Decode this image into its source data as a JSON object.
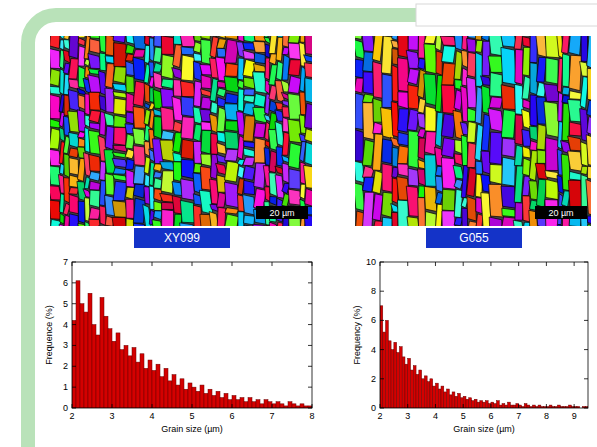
{
  "chart_data": [
    {
      "type": "histogram",
      "title": "XY099",
      "annotation": "20 µm",
      "x_label": "Grain size (µm)",
      "y_label": "Frequence (%)",
      "bins": [
        2,
        2.1,
        2.2,
        2.3,
        2.4,
        2.5,
        2.6,
        2.7,
        2.8,
        2.9,
        3,
        3.1,
        3.2,
        3.3,
        3.4,
        3.5,
        3.6,
        3.7,
        3.8,
        3.9,
        4,
        4.1,
        4.2,
        4.3,
        4.4,
        4.5,
        4.6,
        4.7,
        4.8,
        4.9,
        5,
        5.1,
        5.2,
        5.3,
        5.4,
        5.5,
        5.6,
        5.7,
        5.8,
        5.9,
        6,
        6.1,
        6.2,
        6.3,
        6.4,
        6.5,
        6.6,
        6.7,
        6.8,
        6.9,
        7,
        7.1,
        7.2,
        7.3,
        7.4,
        7.5,
        7.6,
        7.7,
        7.8,
        7.9,
        8
      ],
      "values": [
        4.2,
        6.1,
        5.0,
        4.6,
        5.5,
        4.0,
        3.5,
        5.3,
        4.4,
        3.8,
        3.2,
        3.6,
        2.8,
        3.0,
        2.5,
        2.9,
        2.2,
        2.6,
        1.9,
        2.3,
        1.8,
        2.1,
        1.5,
        1.9,
        1.3,
        1.6,
        1.1,
        1.4,
        0.9,
        1.2,
        1.0,
        0.8,
        1.1,
        0.7,
        0.9,
        0.6,
        0.8,
        0.5,
        0.7,
        0.4,
        0.6,
        0.4,
        0.5,
        0.3,
        0.5,
        0.3,
        0.4,
        0.2,
        0.4,
        0.3,
        0.2,
        0.3,
        0.2,
        0.1,
        0.3,
        0.2,
        0.1,
        0.2,
        0.1,
        0.1
      ],
      "color": "#d40000",
      "xlim": [
        2,
        8
      ],
      "ylim": [
        0,
        7
      ],
      "xticks": [
        2,
        3,
        4,
        5,
        6,
        7,
        8
      ],
      "yticks": [
        0,
        1,
        2,
        3,
        4,
        5,
        6,
        7
      ],
      "grid": false
    },
    {
      "type": "histogram",
      "title": "G055",
      "annotation": "20 µm",
      "x_label": "Grain size (µm)",
      "y_label": "Frequency (%)",
      "bins": [
        2,
        2.1,
        2.2,
        2.3,
        2.4,
        2.5,
        2.6,
        2.7,
        2.8,
        2.9,
        3,
        3.1,
        3.2,
        3.3,
        3.4,
        3.5,
        3.6,
        3.7,
        3.8,
        3.9,
        4,
        4.1,
        4.2,
        4.3,
        4.4,
        4.5,
        4.6,
        4.7,
        4.8,
        4.9,
        5,
        5.1,
        5.2,
        5.3,
        5.4,
        5.5,
        5.6,
        5.7,
        5.8,
        5.9,
        6,
        6.1,
        6.2,
        6.3,
        6.4,
        6.5,
        6.6,
        6.7,
        6.8,
        6.9,
        7,
        7.1,
        7.2,
        7.3,
        7.4,
        7.5,
        7.6,
        7.7,
        7.8,
        7.9,
        8,
        8.1,
        8.2,
        8.3,
        8.4,
        8.5,
        8.6,
        8.7,
        8.8,
        8.9,
        9,
        9.1,
        9.2,
        9.3,
        9.4,
        9.5
      ],
      "values": [
        7.0,
        5.2,
        6.0,
        4.6,
        4.0,
        4.5,
        3.8,
        4.2,
        3.5,
        3.0,
        3.4,
        2.6,
        2.9,
        2.3,
        2.6,
        2.0,
        2.2,
        1.8,
        2.0,
        1.5,
        1.7,
        1.3,
        1.5,
        1.1,
        1.3,
        0.9,
        1.1,
        0.8,
        1.0,
        0.7,
        0.8,
        0.6,
        0.7,
        0.5,
        0.6,
        0.4,
        0.5,
        0.4,
        0.5,
        0.3,
        0.4,
        0.3,
        0.5,
        0.2,
        0.3,
        0.2,
        0.4,
        0.2,
        0.2,
        0.3,
        0.2,
        0.1,
        0.3,
        0.2,
        0.1,
        0.2,
        0.1,
        0.2,
        0.1,
        0.1,
        0.1,
        0.2,
        0.1,
        0.1,
        0.2,
        0.1,
        0.1,
        0.1,
        0.2,
        0.1,
        0.1,
        0.1,
        0.0,
        0.1,
        0.1
      ],
      "color": "#d40000",
      "xlim": [
        2,
        9.5
      ],
      "ylim": [
        0,
        10
      ],
      "xticks": [
        2,
        3,
        4,
        5,
        6,
        7,
        8,
        9
      ],
      "yticks": [
        0,
        2,
        4,
        6,
        8,
        10
      ],
      "grid": false
    }
  ]
}
